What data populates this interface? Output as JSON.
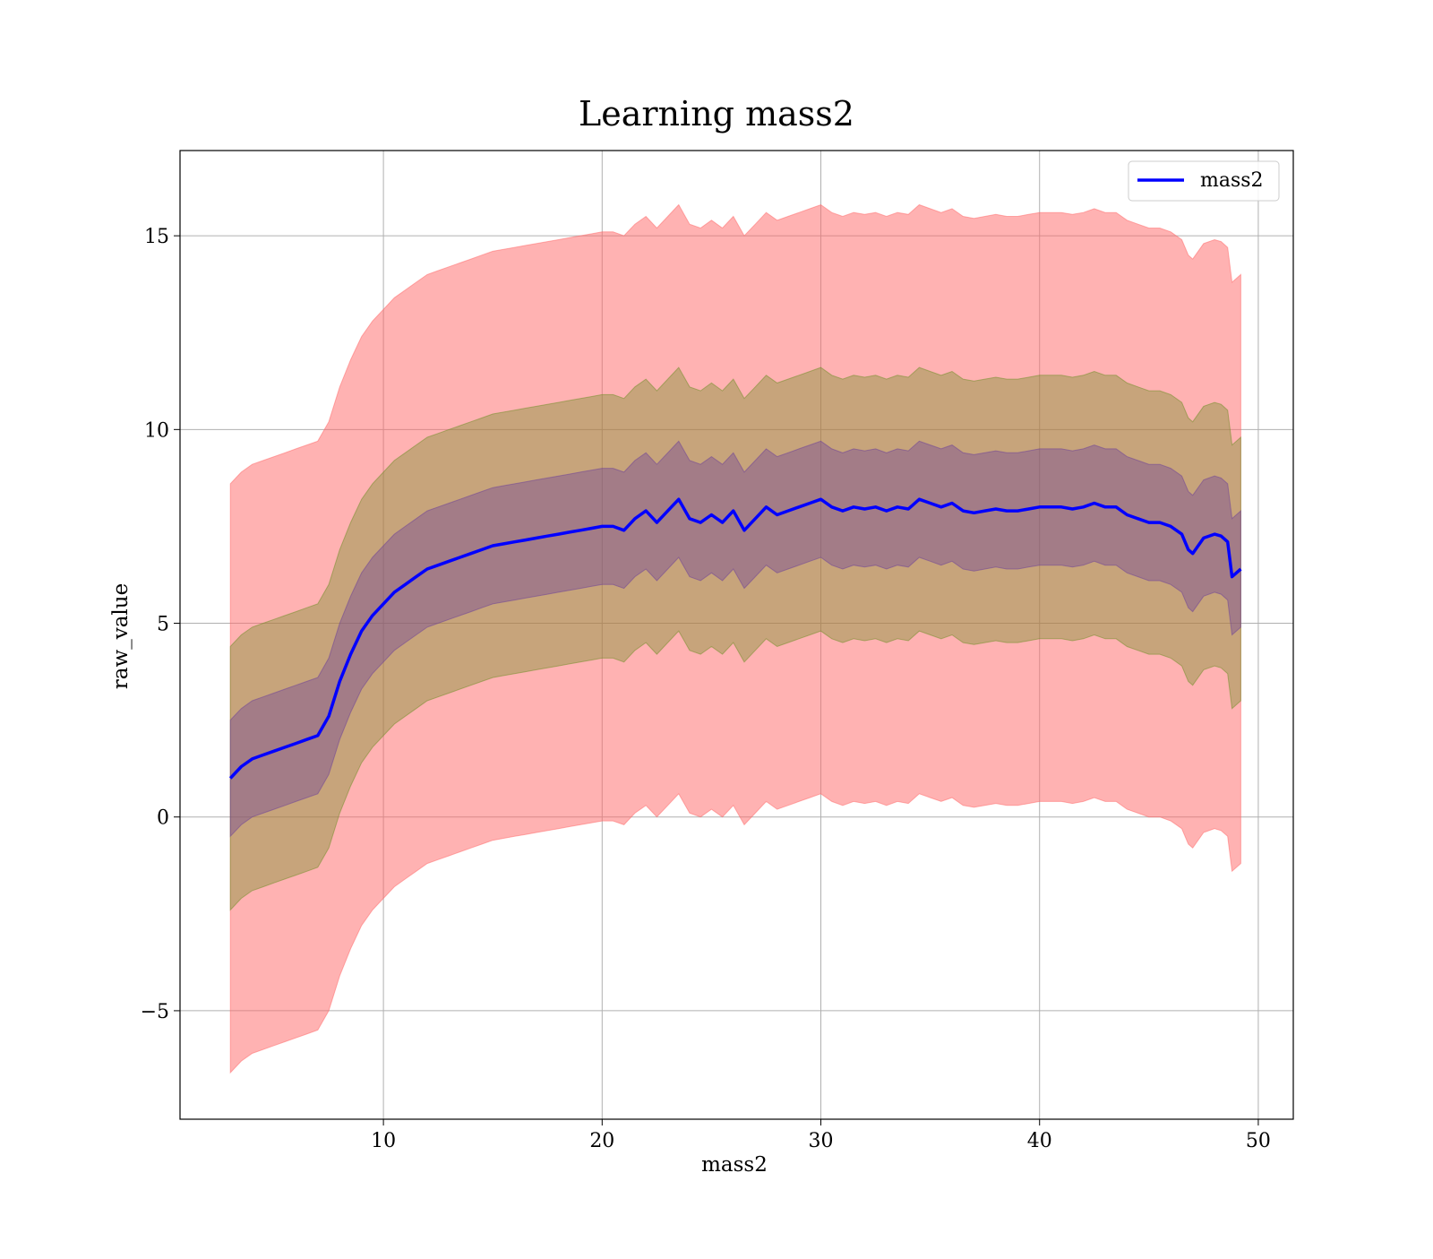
{
  "chart_data": {
    "type": "line",
    "title": "Learning mass2",
    "xlabel": "mass2",
    "ylabel": "raw_value",
    "xlim": [
      0.7,
      51.6
    ],
    "ylim": [
      -7.8,
      17.2
    ],
    "xticks": [
      10,
      20,
      30,
      40,
      50
    ],
    "yticks": [
      -5,
      0,
      5,
      10,
      15
    ],
    "xtick_labels": [
      "10",
      "20",
      "30",
      "40",
      "50"
    ],
    "ytick_labels": [
      "−5",
      "0",
      "5",
      "10",
      "15"
    ],
    "grid": true,
    "legend_position": "top-right",
    "colors": {
      "line": "#0000ff",
      "band_outer": "#ff6666",
      "band_middle": "#6b8e23",
      "band_inner": "#6a3d9a"
    },
    "bands": [
      {
        "level": "outer",
        "half_width": 7.6,
        "opacity": 0.5
      },
      {
        "level": "middle",
        "half_width": 3.4,
        "opacity": 0.38
      },
      {
        "level": "inner",
        "half_width": 1.5,
        "opacity": 0.38
      }
    ],
    "series": [
      {
        "name": "mass2",
        "x": [
          3.0,
          3.5,
          4.0,
          4.5,
          5.0,
          5.5,
          6.0,
          6.5,
          7.0,
          7.5,
          8.0,
          8.5,
          9.0,
          9.5,
          10.0,
          10.5,
          11.0,
          11.5,
          12.0,
          12.5,
          13.0,
          13.5,
          14.0,
          14.5,
          15.0,
          15.5,
          16.0,
          16.5,
          17.0,
          17.5,
          18.0,
          18.5,
          19.0,
          19.5,
          20.0,
          20.5,
          21.0,
          21.5,
          22.0,
          22.5,
          23.0,
          23.5,
          24.0,
          24.5,
          25.0,
          25.5,
          26.0,
          26.5,
          27.0,
          27.5,
          28.0,
          28.5,
          29.0,
          29.5,
          30.0,
          30.5,
          31.0,
          31.5,
          32.0,
          32.5,
          33.0,
          33.5,
          34.0,
          34.5,
          35.0,
          35.5,
          36.0,
          36.5,
          37.0,
          37.5,
          38.0,
          38.5,
          39.0,
          39.5,
          40.0,
          40.5,
          41.0,
          41.5,
          42.0,
          42.5,
          43.0,
          43.5,
          44.0,
          44.5,
          45.0,
          45.5,
          46.0,
          46.5,
          46.8,
          47.0,
          47.5,
          48.0,
          48.3,
          48.6,
          48.8,
          49.2
        ],
        "y": [
          1.0,
          1.3,
          1.5,
          1.6,
          1.7,
          1.8,
          1.9,
          2.0,
          2.1,
          2.6,
          3.5,
          4.2,
          4.8,
          5.2,
          5.5,
          5.8,
          6.0,
          6.2,
          6.4,
          6.5,
          6.6,
          6.7,
          6.8,
          6.9,
          7.0,
          7.05,
          7.1,
          7.15,
          7.2,
          7.25,
          7.3,
          7.35,
          7.4,
          7.45,
          7.5,
          7.5,
          7.4,
          7.7,
          7.9,
          7.6,
          7.9,
          8.2,
          7.7,
          7.6,
          7.8,
          7.6,
          7.9,
          7.4,
          7.7,
          8.0,
          7.8,
          7.9,
          8.0,
          8.1,
          8.2,
          8.0,
          7.9,
          8.0,
          7.95,
          8.0,
          7.9,
          8.0,
          7.95,
          8.2,
          8.1,
          8.0,
          8.1,
          7.9,
          7.85,
          7.9,
          7.95,
          7.9,
          7.9,
          7.95,
          8.0,
          8.0,
          8.0,
          7.95,
          8.0,
          8.1,
          8.0,
          8.0,
          7.8,
          7.7,
          7.6,
          7.6,
          7.5,
          7.3,
          6.9,
          6.8,
          7.2,
          7.3,
          7.25,
          7.1,
          6.2,
          6.4
        ]
      }
    ]
  }
}
